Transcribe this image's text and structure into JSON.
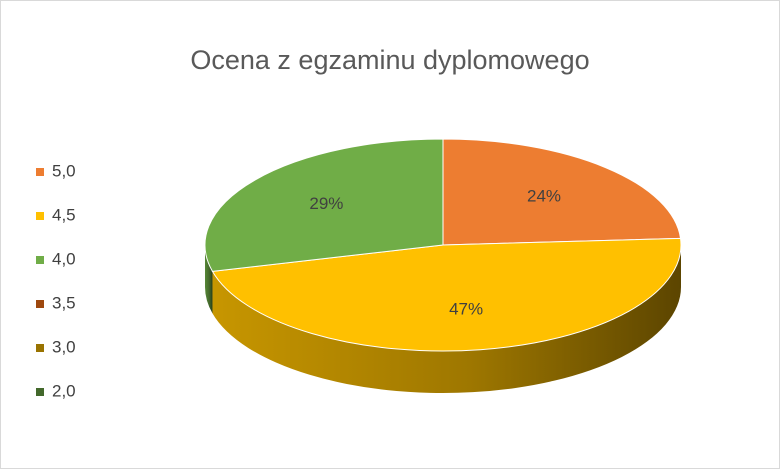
{
  "chart_data": {
    "type": "pie3d",
    "title": "Ocena z egzaminu dyplomowego",
    "categories": [
      "5,0",
      "4,5",
      "4,0",
      "3,5",
      "3,0",
      "2,0"
    ],
    "values": [
      24,
      47,
      29,
      0,
      0,
      0
    ],
    "value_labels": [
      "24%",
      "47%",
      "29%",
      null,
      null,
      null
    ],
    "colors": [
      "#ED7D31",
      "#FFC000",
      "#70AD47",
      "#9E480E",
      "#997300",
      "#43682B"
    ],
    "legend": "left"
  }
}
